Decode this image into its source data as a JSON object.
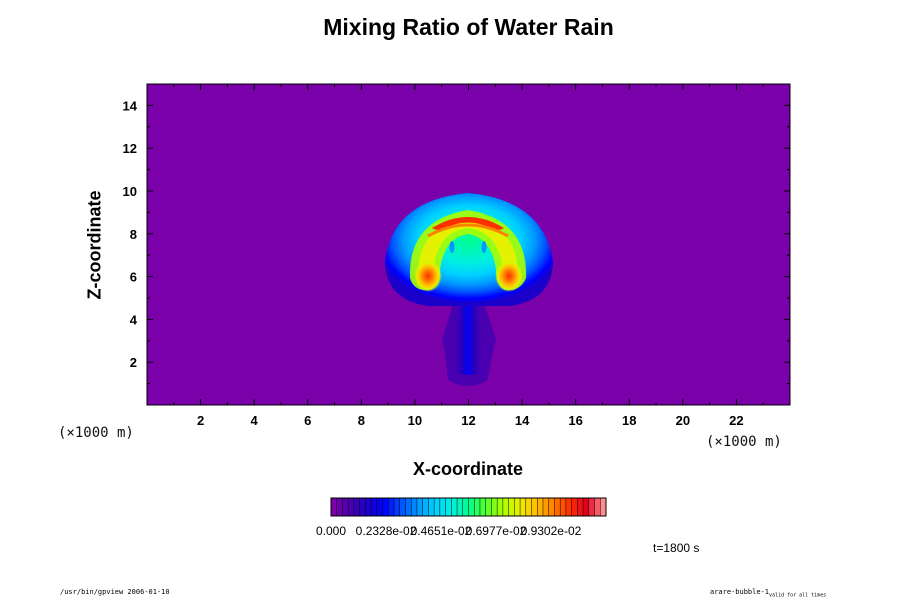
{
  "figure": {
    "title": "Mixing Ratio of Water Rain",
    "xlabel": "X-coordinate",
    "ylabel": "Z-coordinate",
    "x_unit": "(×1000 m)",
    "y_unit": "(×1000 m)",
    "time_label": "t=1800 s",
    "footer_left": "/usr/bin/gpview 2006-01-10",
    "footer_right_main": "arare-bubble-1",
    "footer_right_sub": "valid for all times"
  },
  "colorbar": {
    "labels": [
      "0.000",
      "0.2328e-02",
      "0.4651e-02",
      "0.6977e-02",
      "0.9302e-02"
    ],
    "label_values": [
      0,
      0.002328,
      0.004651,
      0.006977,
      0.009302
    ],
    "range": [
      0,
      0.01163
    ],
    "colors": [
      "#7a00aa",
      "#4a00b0",
      "#1a00c8",
      "#0000ff",
      "#0050ff",
      "#0098ff",
      "#00d0ff",
      "#00f0e0",
      "#00ff90",
      "#50ff30",
      "#a8ff00",
      "#e8f000",
      "#ffc000",
      "#ff8000",
      "#ff3000",
      "#e00020",
      "#ff8c8c"
    ]
  },
  "chart_data": {
    "type": "heatmap",
    "title": "Mixing Ratio of Water Rain",
    "xlabel": "X-coordinate",
    "ylabel": "Z-coordinate",
    "x_unit": "(×1000 m)",
    "y_unit": "(×1000 m)",
    "xlim": [
      0,
      24
    ],
    "ylim": [
      0,
      15
    ],
    "xticks": [
      2,
      4,
      6,
      8,
      10,
      12,
      14,
      16,
      18,
      20,
      22
    ],
    "yticks": [
      2,
      4,
      6,
      8,
      10,
      12,
      14
    ],
    "value_range": [
      0,
      0.01163
    ],
    "colorbar_labels": [
      "0.000",
      "0.2328e-02",
      "0.4651e-02",
      "0.6977e-02",
      "0.9302e-02"
    ],
    "features": [
      {
        "shape": "cap",
        "center": [
          12.0,
          6.5
        ],
        "half_width": 3.1,
        "top": 9.6,
        "value": 0.002
      },
      {
        "shape": "arch",
        "center": [
          12.0,
          6.4
        ],
        "value": 0.0075
      },
      {
        "shape": "arch-crest",
        "center": [
          12.0,
          8.5
        ],
        "value": 0.0105
      },
      {
        "shape": "core",
        "center": [
          10.5,
          5.9
        ],
        "value": 0.01
      },
      {
        "shape": "core",
        "center": [
          13.5,
          5.9
        ],
        "value": 0.01
      },
      {
        "shape": "stem",
        "x_range": [
          11.3,
          12.7
        ],
        "z_range": [
          0.8,
          4.5
        ],
        "value": 0.0006
      }
    ],
    "grid": false,
    "time": "t=1800 s"
  }
}
